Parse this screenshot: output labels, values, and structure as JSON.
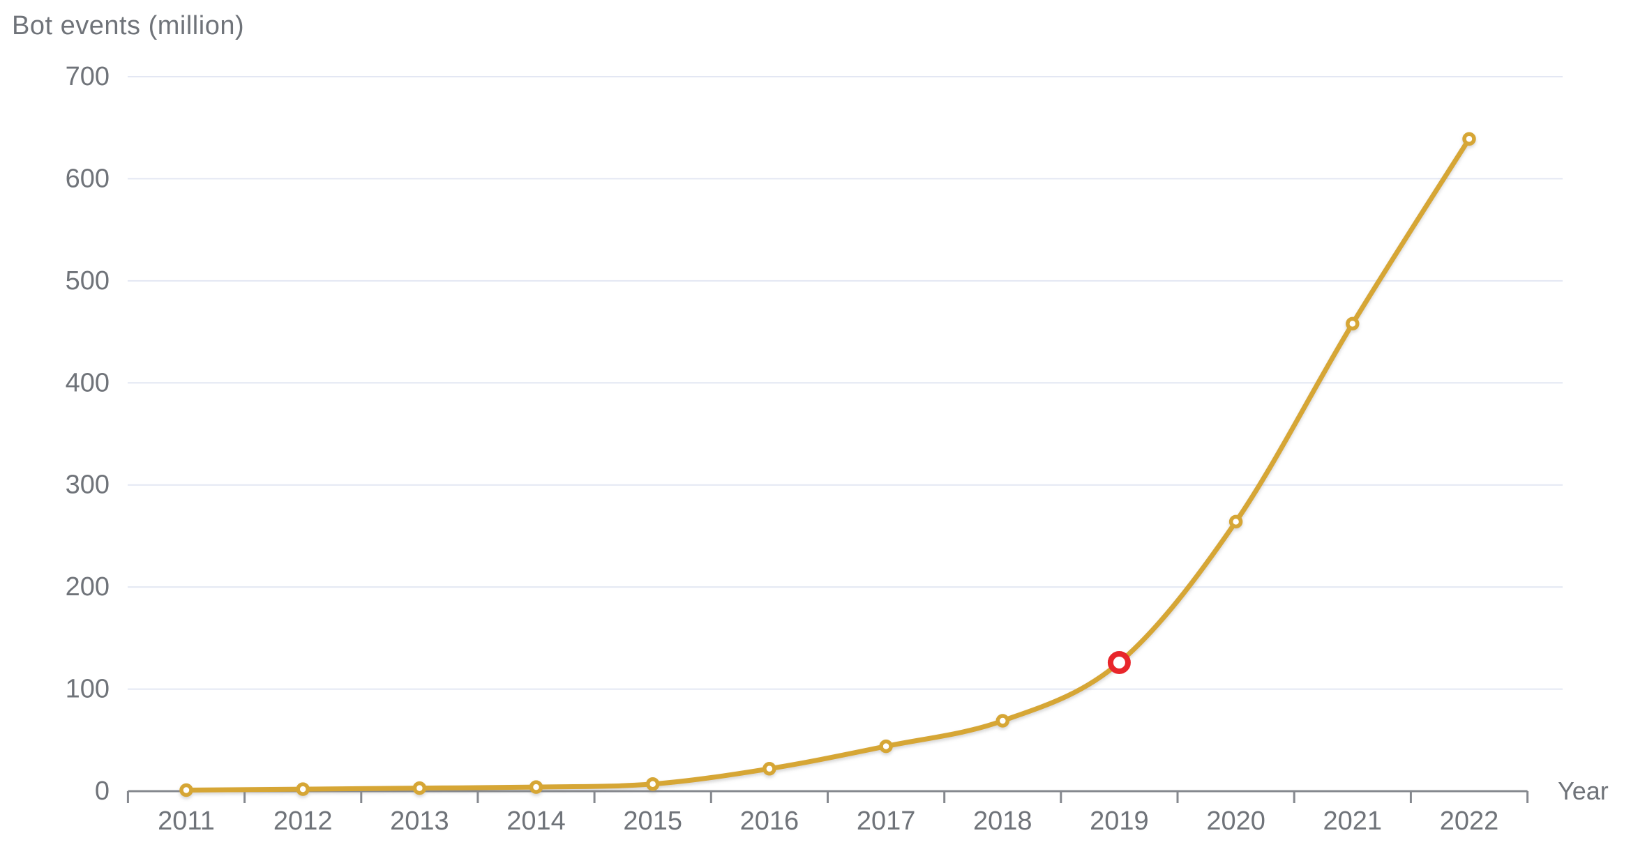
{
  "page": {
    "background": "#FFFFFF"
  },
  "chart_data": {
    "type": "line",
    "title": "Bot events (million)",
    "xlabel": "Year",
    "ylabel": "Bot events (million)",
    "categories": [
      2011,
      2012,
      2013,
      2014,
      2015,
      2016,
      2017,
      2018,
      2019,
      2020,
      2021,
      2022
    ],
    "series": [
      {
        "name": "Bot events (million)",
        "values": [
          1,
          2,
          3,
          4,
          7,
          22,
          44,
          69,
          126,
          264,
          458,
          639
        ],
        "color": "#D6A636",
        "marker": "open-circle"
      }
    ],
    "ylim": [
      0,
      700
    ],
    "yticks": [
      0,
      100,
      200,
      300,
      400,
      500,
      600,
      700
    ],
    "grid": "horizontal-only",
    "legend": "none",
    "highlight": {
      "category": 2019,
      "value": 126,
      "marker": "open-ring",
      "color": "#E8262B"
    }
  },
  "styles": {
    "background": "#FFFFFF",
    "line_color": "#D6A636",
    "highlight_color": "#E8262B",
    "marker_fill": "#FFFFFF",
    "label_color": "#6F7379",
    "axis_color": "#85888E",
    "gridline_color": "#E3E7F3",
    "shadow_color": "#8A8A8A"
  }
}
